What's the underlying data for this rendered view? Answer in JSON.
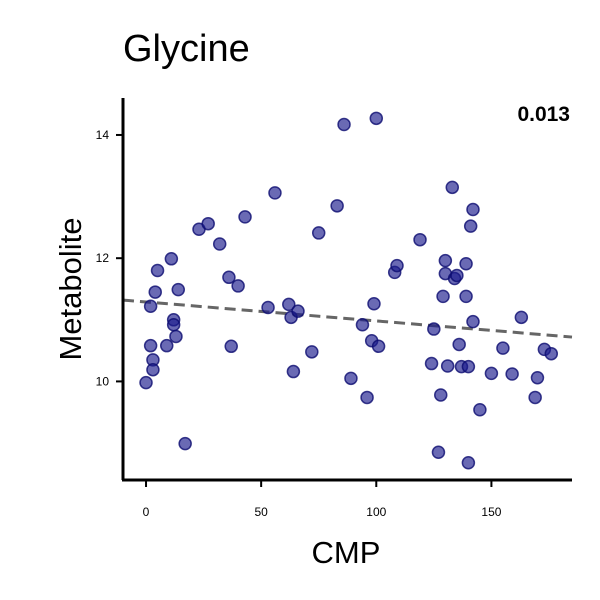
{
  "chart_data": {
    "type": "scatter",
    "title": "Glycine",
    "xlabel": "CMP",
    "ylabel": "Metabolite",
    "annotation": "0.013",
    "xlim": [
      -10,
      185
    ],
    "ylim": [
      8.4,
      14.6
    ],
    "xticks": [
      0,
      50,
      100,
      150
    ],
    "yticks": [
      10,
      12,
      14
    ],
    "xtick_labels": [
      "0",
      "50",
      "100",
      "150"
    ],
    "ytick_labels": [
      "10",
      "12",
      "14"
    ],
    "grid": false,
    "legend": "none",
    "point_color": "#1a1a8c",
    "point_edge_color": "#0d0d70",
    "trend_color": "#666666",
    "trend_line": {
      "x": [
        -10,
        185
      ],
      "y": [
        11.32,
        10.72
      ]
    },
    "x": [
      0,
      2,
      2,
      3,
      3,
      4,
      5,
      9,
      11,
      12,
      12,
      13,
      14,
      17,
      23,
      27,
      32,
      36,
      37,
      40,
      43,
      53,
      56,
      62,
      63,
      64,
      66,
      72,
      75,
      83,
      86,
      89,
      94,
      96,
      98,
      99,
      100,
      101,
      108,
      109,
      119,
      124,
      125,
      127,
      128,
      129,
      130,
      130,
      131,
      133,
      134,
      135,
      136,
      137,
      139,
      139,
      140,
      140,
      141,
      142,
      142,
      145,
      150,
      155,
      159,
      163,
      169,
      170,
      173,
      176
    ],
    "y": [
      9.98,
      11.22,
      10.58,
      10.35,
      10.19,
      11.45,
      11.8,
      10.58,
      11.99,
      11.0,
      10.92,
      10.73,
      11.49,
      8.99,
      12.47,
      12.56,
      12.23,
      11.69,
      10.57,
      11.55,
      12.67,
      11.2,
      13.06,
      11.25,
      11.04,
      10.16,
      11.14,
      10.48,
      12.41,
      12.85,
      14.17,
      10.05,
      10.92,
      9.74,
      10.66,
      11.26,
      14.27,
      10.57,
      11.77,
      11.88,
      12.3,
      10.29,
      10.85,
      8.85,
      9.78,
      11.38,
      11.96,
      11.75,
      10.25,
      13.15,
      11.67,
      11.72,
      10.6,
      10.24,
      11.91,
      11.38,
      8.68,
      10.24,
      12.52,
      12.79,
      10.97,
      9.54,
      10.13,
      10.54,
      10.12,
      11.04,
      9.74,
      10.06,
      10.52,
      10.45
    ]
  }
}
